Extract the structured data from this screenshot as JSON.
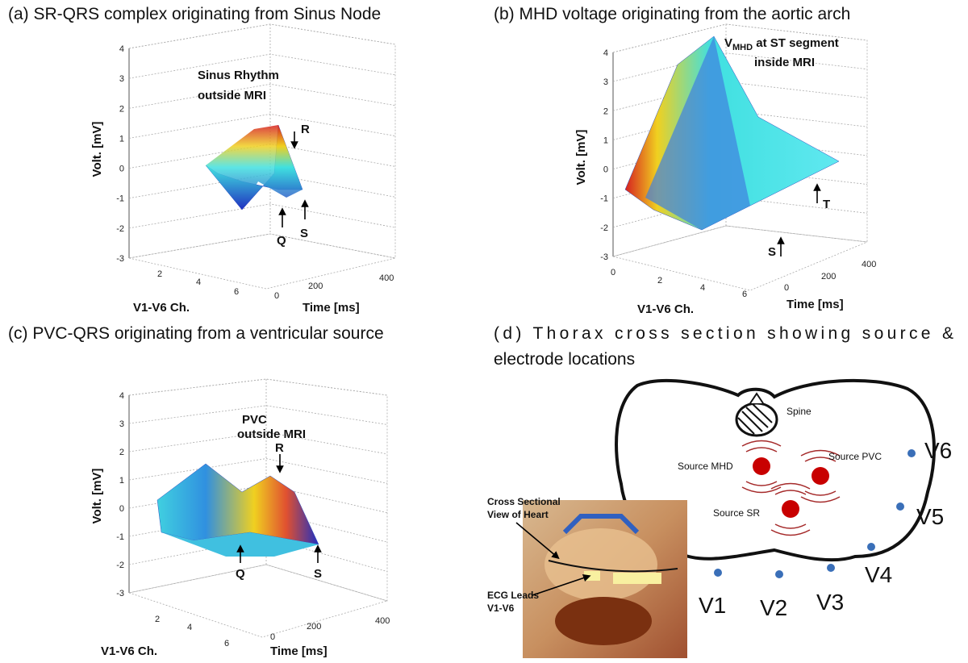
{
  "panels": [
    {
      "title": "(a) SR-QRS complex originating from Sinus Node",
      "y_label": "Volt. [mV]",
      "ch_label": "V1-V6 Ch.",
      "time_label": "Time [ms]",
      "zticks": [
        "4",
        "3",
        "2",
        "1",
        "0",
        "-1",
        "-2",
        "-3"
      ],
      "chticks": [
        "2",
        "4",
        "6"
      ],
      "timeticks": [
        "0",
        "200",
        "400"
      ],
      "annotations": [
        "Sinus Rhythm",
        "outside MRI",
        "R",
        "Q",
        "S"
      ]
    },
    {
      "title": "(b) MHD voltage originating from the aortic arch",
      "y_label": "Volt. [mV]",
      "ch_label": "V1-V6 Ch.",
      "time_label": "Time [ms]",
      "zticks": [
        "4",
        "3",
        "2",
        "1",
        "0",
        "-1",
        "-2",
        "-3"
      ],
      "chticks": [
        "0",
        "2",
        "4",
        "6"
      ],
      "timeticks": [
        "0",
        "200",
        "400"
      ],
      "annotations": [
        "V",
        "MHD",
        " at ST segment",
        "inside MRI",
        "T",
        "S"
      ]
    },
    {
      "title": "(c) PVC-QRS originating from a ventricular source",
      "y_label": "Volt. [mV]",
      "ch_label": "V1-V6 Ch.",
      "time_label": "Time [ms]",
      "zticks": [
        "4",
        "3",
        "2",
        "1",
        "0",
        "-1",
        "-2",
        "-3"
      ],
      "chticks": [
        "2",
        "4",
        "6"
      ],
      "timeticks": [
        "0",
        "200",
        "400"
      ],
      "annotations": [
        "PVC",
        "outside MRI",
        "R",
        "Q",
        "S"
      ]
    }
  ],
  "thorax": {
    "title_line1": "(d) Thorax cross section showing source &",
    "title_line2": "electrode locations",
    "spine": "Spine",
    "sources": [
      "Source MHD",
      "Source PVC",
      "Source SR"
    ],
    "electrodes": [
      "V1",
      "V2",
      "V3",
      "V4",
      "V5",
      "V6"
    ],
    "inset_labels": [
      "Cross Sectional",
      "View of Heart",
      "ECG Leads",
      "V1-V6"
    ]
  }
}
